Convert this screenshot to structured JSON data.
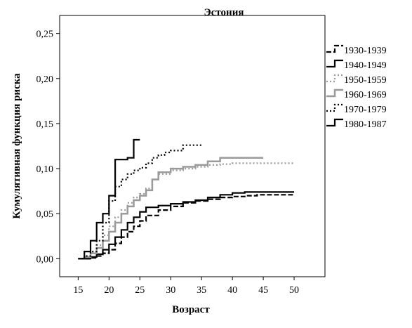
{
  "chart_data": {
    "type": "line",
    "title": "Эстония",
    "xlabel": "Возраст",
    "ylabel": "Кумулятивная функция риска",
    "xlim": [
      12,
      55
    ],
    "ylim": [
      -0.02,
      0.27
    ],
    "x_ticks": [
      15,
      20,
      25,
      30,
      35,
      40,
      45,
      50
    ],
    "x_tick_labels": [
      "15",
      "20",
      "25",
      "30",
      "35",
      "40",
      "45",
      "50"
    ],
    "y_ticks": [
      0.0,
      0.05,
      0.1,
      0.15,
      0.2,
      0.25
    ],
    "y_tick_labels": [
      "0,00",
      "0,05",
      "0,10",
      "0,15",
      "0,20",
      "0,25"
    ],
    "grid": false,
    "legend_position": "right",
    "step": true,
    "series": [
      {
        "name": "1930-1939",
        "style": "dash",
        "color": "#000000",
        "x": [
          15,
          17,
          18,
          19,
          20,
          21,
          22,
          23,
          24,
          25,
          26,
          28,
          30,
          32,
          34,
          36,
          38,
          40,
          42,
          44,
          46,
          48,
          50
        ],
        "y": [
          0.0,
          0.001,
          0.003,
          0.006,
          0.01,
          0.017,
          0.024,
          0.03,
          0.036,
          0.042,
          0.048,
          0.054,
          0.058,
          0.062,
          0.064,
          0.066,
          0.068,
          0.069,
          0.07,
          0.071,
          0.071,
          0.071,
          0.071
        ]
      },
      {
        "name": "1940-1949",
        "style": "solid",
        "color": "#000000",
        "x": [
          15,
          17,
          18,
          19,
          20,
          21,
          22,
          23,
          24,
          25,
          26,
          28,
          30,
          32,
          34,
          36,
          38,
          40,
          42,
          44,
          46,
          48,
          50
        ],
        "y": [
          0.0,
          0.002,
          0.005,
          0.01,
          0.016,
          0.024,
          0.032,
          0.04,
          0.046,
          0.052,
          0.057,
          0.059,
          0.061,
          0.063,
          0.065,
          0.068,
          0.071,
          0.073,
          0.074,
          0.074,
          0.074,
          0.074,
          0.074
        ]
      },
      {
        "name": "1950-1959",
        "style": "dot",
        "color": "#9a9a9a",
        "x": [
          15,
          16,
          17,
          18,
          19,
          20,
          21,
          22,
          23,
          24,
          25,
          26,
          27,
          28,
          30,
          32,
          34,
          36,
          38,
          40,
          45,
          50
        ],
        "y": [
          0.0,
          0.002,
          0.006,
          0.015,
          0.026,
          0.036,
          0.046,
          0.054,
          0.062,
          0.068,
          0.072,
          0.078,
          0.088,
          0.094,
          0.098,
          0.1,
          0.102,
          0.104,
          0.105,
          0.106,
          0.106,
          0.106
        ]
      },
      {
        "name": "1960-1969",
        "style": "solid",
        "color": "#9a9a9a",
        "x": [
          15,
          16,
          17,
          18,
          19,
          20,
          21,
          22,
          23,
          24,
          25,
          26,
          27,
          28,
          30,
          32,
          34,
          36,
          38,
          40,
          45
        ],
        "y": [
          0.0,
          0.002,
          0.006,
          0.012,
          0.02,
          0.03,
          0.04,
          0.05,
          0.058,
          0.065,
          0.07,
          0.076,
          0.088,
          0.096,
          0.1,
          0.102,
          0.104,
          0.108,
          0.112,
          0.112,
          0.112
        ]
      },
      {
        "name": "1970-1979",
        "style": "dot",
        "color": "#000000",
        "x": [
          15,
          16,
          17,
          18,
          19,
          20,
          21,
          22,
          23,
          24,
          25,
          26,
          27,
          28,
          29,
          30,
          32,
          35
        ],
        "y": [
          0.0,
          0.003,
          0.008,
          0.02,
          0.04,
          0.064,
          0.08,
          0.088,
          0.094,
          0.098,
          0.101,
          0.106,
          0.112,
          0.115,
          0.118,
          0.12,
          0.126,
          0.126
        ]
      },
      {
        "name": "1980-1987",
        "style": "solid",
        "color": "#000000",
        "x": [
          15,
          16,
          17,
          18,
          19,
          20,
          21,
          23,
          24,
          25
        ],
        "y": [
          0.0,
          0.008,
          0.02,
          0.04,
          0.05,
          0.07,
          0.11,
          0.112,
          0.132,
          0.132
        ]
      }
    ]
  }
}
